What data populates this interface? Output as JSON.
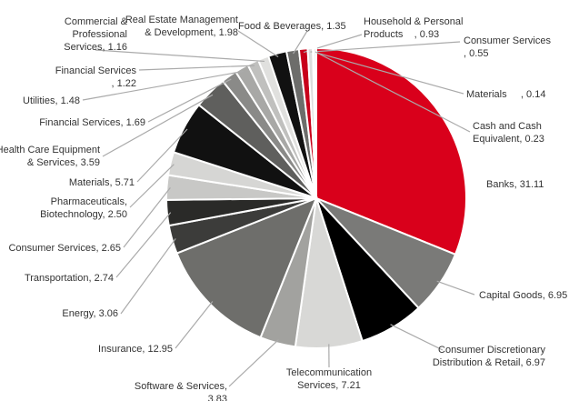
{
  "chart_data": {
    "type": "pie",
    "categories": [
      "Banks,",
      "Capital Goods,",
      "Consumer Discretionary\nDistribution & Retail,",
      "Telecommunication\nServices,",
      "Software & Services,",
      "Insurance,",
      "Energy,",
      "Transportation,",
      "Consumer Services,",
      "Pharmaceuticals,\nBiotechnology,",
      "Materials,",
      "Health Care Equipment\n& Services,",
      "Financial Services,",
      "Utilities,",
      "Financial Services      ,",
      "Commercial &\nProfessional\nServices,",
      "Real Estate Management\n& Development,",
      "Food & Beverages,",
      "Household & Personal\nProducts    ,",
      "Consumer Services     ,",
      "Materials     ,",
      "Cash and Cash\nEquivalent,"
    ],
    "values": [
      31.11,
      6.95,
      6.97,
      7.21,
      3.83,
      12.95,
      3.06,
      2.74,
      2.65,
      2.5,
      5.71,
      3.59,
      1.69,
      1.48,
      1.22,
      1.16,
      1.98,
      1.35,
      0.93,
      0.55,
      0.14,
      0.23
    ],
    "value_labels": [
      "31.11",
      "6.95",
      "6.97",
      "7.21",
      "3.83",
      "12.95",
      "3.06",
      "2.74",
      "2.65",
      "2.50",
      "5.71",
      "3.59",
      "1.69",
      "1.48",
      "1.22",
      "1.16",
      "1.98",
      "1.35",
      "0.93",
      "0.55",
      "0.14",
      "0.23"
    ],
    "colors": [
      "#d9001b",
      "#7a7a78",
      "#000000",
      "#d8d8d6",
      "#a2a29f",
      "#6e6e6b",
      "#3c3c3a",
      "#2a2a28",
      "#c8c8c6",
      "#d6d6d4",
      "#111111",
      "#5f5f5d",
      "#8a8a88",
      "#a8a8a6",
      "#c0c0be",
      "#e0e0de",
      "#111111",
      "#6d6d6b",
      "#c8001a",
      "#dddddd",
      "#888888",
      "#cccccc"
    ]
  }
}
